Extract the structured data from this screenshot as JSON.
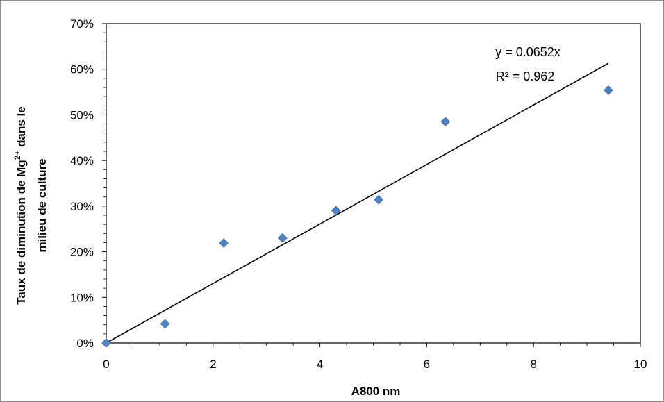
{
  "chart_data": {
    "type": "scatter",
    "xlabel": "A800 nm",
    "ylabel_parts": {
      "line1_prefix": "Taux de diminution de Mg",
      "line1_sup": "2+",
      "line1_suffix": " dans le",
      "line2": "milieu de culture"
    },
    "xlim": [
      0,
      10
    ],
    "ylim": [
      0,
      0.7
    ],
    "x_ticks": [
      0,
      2,
      4,
      6,
      8,
      10
    ],
    "x_tick_labels": [
      "0",
      "2",
      "4",
      "6",
      "8",
      "10"
    ],
    "y_ticks": [
      0,
      0.1,
      0.2,
      0.3,
      0.4,
      0.5,
      0.6,
      0.7
    ],
    "y_tick_labels": [
      "0%",
      "10%",
      "20%",
      "30%",
      "40%",
      "50%",
      "60%",
      "70%"
    ],
    "grid": false,
    "legend": "none",
    "series": [
      {
        "marker": "diamond",
        "color": "#4F81BD",
        "points": [
          {
            "x": 0,
            "y": 0.0
          },
          {
            "x": 1.1,
            "y": 0.042
          },
          {
            "x": 2.2,
            "y": 0.219
          },
          {
            "x": 3.3,
            "y": 0.23
          },
          {
            "x": 4.3,
            "y": 0.29
          },
          {
            "x": 5.1,
            "y": 0.314
          },
          {
            "x": 6.35,
            "y": 0.485
          },
          {
            "x": 9.4,
            "y": 0.554
          }
        ]
      }
    ],
    "trendline": {
      "type": "linear",
      "slope": 0.0652,
      "intercept": 0,
      "x_range": [
        0,
        9.4
      ],
      "color": "#000000",
      "equation": "y = 0.0652x",
      "r_squared_label": "R² = 0.962"
    }
  }
}
